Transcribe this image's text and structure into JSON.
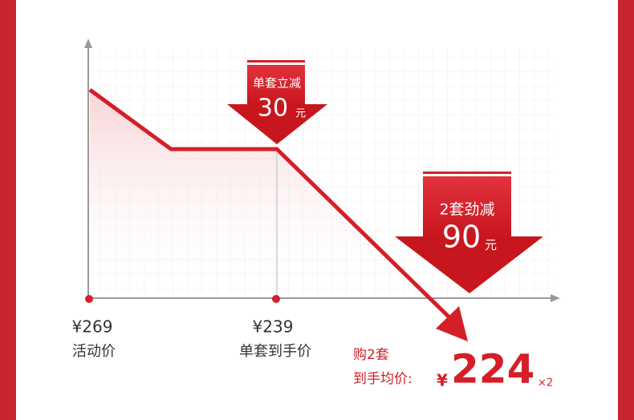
{
  "badges": [
    {
      "label": "单套立减",
      "amount": "30",
      "unit": "元"
    },
    {
      "label": "2套劲减",
      "amount": "90",
      "unit": "元"
    }
  ],
  "prices": [
    {
      "price": "¥269",
      "label": "活动价"
    },
    {
      "price": "¥239",
      "label": "单套到手价"
    }
  ],
  "final": {
    "line1": "购2套",
    "line2": "到手均价:",
    "currency": "¥",
    "amount": "224",
    "multiplier": "×2"
  }
}
